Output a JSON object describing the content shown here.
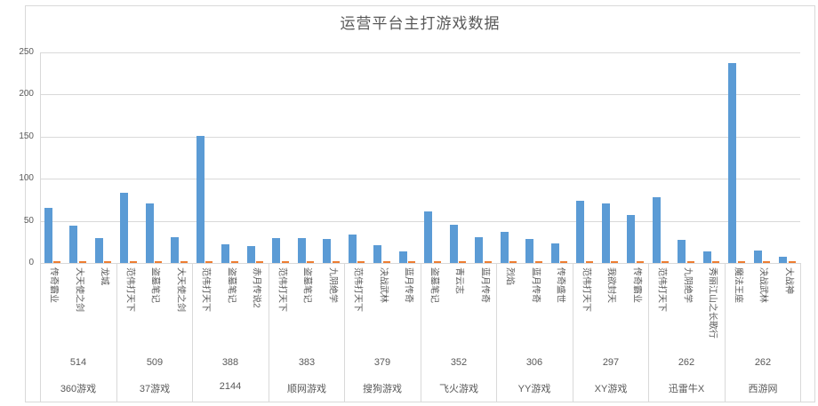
{
  "chart_data": {
    "type": "bar",
    "title": "运营平台主打游戏数据",
    "ylabel": "",
    "xlabel": "",
    "ylim": [
      0,
      250
    ],
    "y_ticks": [
      0,
      50,
      100,
      150,
      200,
      250
    ],
    "grid": true,
    "legend": "none",
    "colors": {
      "primary_series": "#5b9bd5",
      "secondary_series": "#ed7d31"
    },
    "groups": [
      {
        "platform": "360游戏",
        "total": "514",
        "games": [
          {
            "name": "传奇霸业",
            "value": 65,
            "value2": 2
          },
          {
            "name": "大天使之剑",
            "value": 44,
            "value2": 2
          },
          {
            "name": "龙城",
            "value": 29,
            "value2": 2
          }
        ]
      },
      {
        "platform": "37游戏",
        "total": "509",
        "games": [
          {
            "name": "范伟打天下",
            "value": 83,
            "value2": 2
          },
          {
            "name": "盗墓笔记",
            "value": 70,
            "value2": 2
          },
          {
            "name": "大天使之剑",
            "value": 30,
            "value2": 2
          }
        ]
      },
      {
        "platform": "2144",
        "total": "388",
        "games": [
          {
            "name": "范伟打天下",
            "value": 150,
            "value2": 2
          },
          {
            "name": "盗墓笔记",
            "value": 22,
            "value2": 2
          },
          {
            "name": "赤月传说2",
            "value": 20,
            "value2": 2
          }
        ]
      },
      {
        "platform": "顺网游戏",
        "total": "383",
        "games": [
          {
            "name": "范伟打天下",
            "value": 29,
            "value2": 2
          },
          {
            "name": "盗墓笔记",
            "value": 29,
            "value2": 2
          },
          {
            "name": "九阴绝学",
            "value": 28,
            "value2": 2
          }
        ]
      },
      {
        "platform": "搜狗游戏",
        "total": "379",
        "games": [
          {
            "name": "范伟打天下",
            "value": 34,
            "value2": 2
          },
          {
            "name": "决战武林",
            "value": 21,
            "value2": 2
          },
          {
            "name": "蓝月传奇",
            "value": 14,
            "value2": 2
          }
        ]
      },
      {
        "platform": "飞火游戏",
        "total": "352",
        "games": [
          {
            "name": "盗墓笔记",
            "value": 61,
            "value2": 2
          },
          {
            "name": "青云志",
            "value": 45,
            "value2": 2
          },
          {
            "name": "蓝月传奇",
            "value": 30,
            "value2": 2
          }
        ]
      },
      {
        "platform": "YY游戏",
        "total": "306",
        "games": [
          {
            "name": "烈焰",
            "value": 37,
            "value2": 2
          },
          {
            "name": "蓝月传奇",
            "value": 28,
            "value2": 2
          },
          {
            "name": "传奇盛世",
            "value": 23,
            "value2": 2
          }
        ]
      },
      {
        "platform": "XY游戏",
        "total": "297",
        "games": [
          {
            "name": "范伟打天下",
            "value": 74,
            "value2": 2
          },
          {
            "name": "我欲封天",
            "value": 70,
            "value2": 2
          },
          {
            "name": "传奇霸业",
            "value": 57,
            "value2": 2
          }
        ]
      },
      {
        "platform": "迅雷牛X",
        "total": "262",
        "games": [
          {
            "name": "范伟打天下",
            "value": 78,
            "value2": 2
          },
          {
            "name": "九阴绝学",
            "value": 27,
            "value2": 2
          },
          {
            "name": "秀丽江山之长歌行",
            "value": 14,
            "value2": 2
          }
        ]
      },
      {
        "platform": "西游网",
        "total": "262",
        "games": [
          {
            "name": "魔法王座",
            "value": 237,
            "value2": 2
          },
          {
            "name": "决战武林",
            "value": 15,
            "value2": 2
          },
          {
            "name": "大战神",
            "value": 7,
            "value2": 2
          }
        ]
      }
    ]
  }
}
